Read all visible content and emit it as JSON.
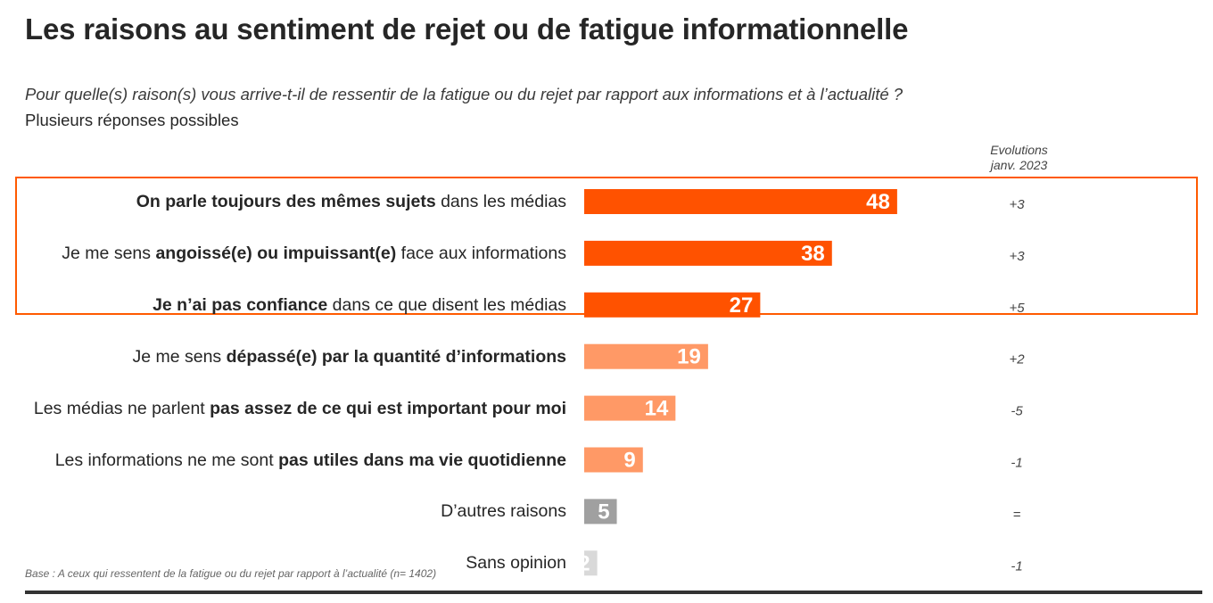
{
  "title": "Les raisons au sentiment de rejet ou de fatigue informationnelle",
  "question": "Pour quelle(s) raison(s) vous arrive-t-il de ressentir de la fatigue ou du rejet par rapport aux informations et à l’actualité ?",
  "note": "Plusieurs réponses possibles",
  "evolutions_header": [
    "Evolutions",
    "janv. 2023"
  ],
  "base_note": "Base : A ceux qui ressentent de la fatigue ou du rejet par rapport à l’actualité (n= 1402)",
  "colors": {
    "top_group": "#ff5200",
    "mid_group": "#ff9966",
    "other": "#a0a0a0",
    "no_opinion": "#d9d9d9",
    "highlight_border": "#ff5a00"
  },
  "chart_data": {
    "type": "bar",
    "orientation": "horizontal",
    "title": "Les raisons au sentiment de rejet ou de fatigue informationnelle",
    "unit": "%",
    "xlim": [
      0,
      50
    ],
    "categories": [
      "On parle toujours des mêmes sujets dans les médias",
      "Je me sens angoissé(e) ou impuissant(e) face aux informations",
      "Je n’ai pas confiance dans ce que disent les médias",
      "Je me sens dépassé(e) par la quantité d’informations",
      "Les médias ne parlent pas assez de ce qui est important pour moi",
      "Les informations ne me sont pas utiles dans ma vie quotidienne",
      "D’autres raisons",
      "Sans opinion"
    ],
    "values": [
      48,
      38,
      27,
      19,
      14,
      9,
      5,
      2
    ],
    "evolutions": [
      "+3",
      "+3",
      "+5",
      "+2",
      "-5",
      "-1",
      "=",
      "-1"
    ],
    "rows": [
      {
        "label": [
          {
            "text": "On parle toujours des mêmes sujets",
            "bold": true
          },
          {
            "text": " dans les médias",
            "bold": false
          }
        ],
        "value": 48,
        "evolution": "+3",
        "group": "top_group"
      },
      {
        "label": [
          {
            "text": "Je me sens ",
            "bold": false
          },
          {
            "text": "angoissé(e) ou impuissant(e)",
            "bold": true
          },
          {
            "text": " face aux informations",
            "bold": false
          }
        ],
        "value": 38,
        "evolution": "+3",
        "group": "top_group"
      },
      {
        "label": [
          {
            "text": "Je n’ai pas confiance",
            "bold": true
          },
          {
            "text": " dans ce que disent les médias",
            "bold": false
          }
        ],
        "value": 27,
        "evolution": "+5",
        "group": "top_group"
      },
      {
        "label": [
          {
            "text": "Je me sens ",
            "bold": false
          },
          {
            "text": "dépassé(e) par la quantité d’informations",
            "bold": true
          }
        ],
        "value": 19,
        "evolution": "+2",
        "group": "mid_group"
      },
      {
        "label": [
          {
            "text": "Les médias ne parlent ",
            "bold": false
          },
          {
            "text": "pas assez de ce qui est important pour moi",
            "bold": true
          }
        ],
        "value": 14,
        "evolution": "-5",
        "group": "mid_group"
      },
      {
        "label": [
          {
            "text": "Les informations ne me sont ",
            "bold": false
          },
          {
            "text": "pas utiles dans ma vie quotidienne",
            "bold": true
          }
        ],
        "value": 9,
        "evolution": "-1",
        "group": "mid_group"
      },
      {
        "label": [
          {
            "text": "D’autres raisons",
            "bold": false
          }
        ],
        "value": 5,
        "evolution": "=",
        "group": "other"
      },
      {
        "label": [
          {
            "text": "Sans opinion",
            "bold": false
          }
        ],
        "value": 2,
        "evolution": "-1",
        "group": "no_opinion"
      }
    ]
  }
}
